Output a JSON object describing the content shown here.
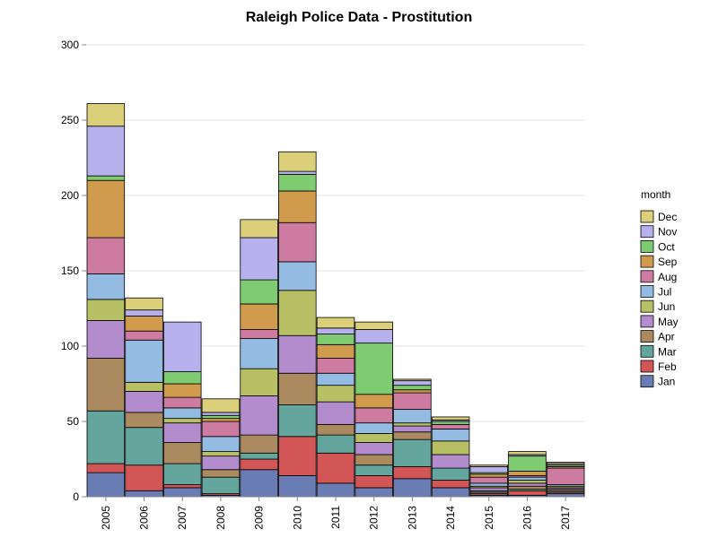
{
  "chart_data": {
    "type": "bar",
    "stacked": true,
    "title": "Raleigh Police Data - Prostitution",
    "xlabel": "",
    "ylabel": "",
    "ylim": [
      0,
      300
    ],
    "yticks": [
      0,
      50,
      100,
      150,
      200,
      250,
      300
    ],
    "categories": [
      "2005",
      "2006",
      "2007",
      "2008",
      "2009",
      "2010",
      "2011",
      "2012",
      "2013",
      "2014",
      "2015",
      "2016",
      "2017"
    ],
    "legend_title": "month",
    "legend_position": "right",
    "series": [
      {
        "name": "Jan",
        "color": "#6a7cb4",
        "values": [
          16,
          4,
          6,
          1,
          18,
          14,
          9,
          6,
          12,
          6,
          1,
          1,
          2
        ]
      },
      {
        "name": "Feb",
        "color": "#d35656",
        "values": [
          6,
          17,
          2,
          1,
          7,
          26,
          20,
          8,
          8,
          5,
          1,
          3,
          1
        ]
      },
      {
        "name": "Mar",
        "color": "#64a59d",
        "values": [
          35,
          25,
          14,
          11,
          4,
          21,
          12,
          7,
          18,
          8,
          1,
          1,
          1
        ]
      },
      {
        "name": "Apr",
        "color": "#aa8a5e",
        "values": [
          35,
          10,
          14,
          5,
          12,
          21,
          7,
          7,
          5,
          0,
          1,
          2,
          1
        ]
      },
      {
        "name": "May",
        "color": "#b28ccd",
        "values": [
          25,
          14,
          13,
          9,
          26,
          25,
          15,
          8,
          4,
          9,
          2,
          2,
          1
        ]
      },
      {
        "name": "Jun",
        "color": "#b8c066",
        "values": [
          14,
          6,
          3,
          3,
          18,
          30,
          11,
          6,
          2,
          9,
          1,
          2,
          1
        ]
      },
      {
        "name": "Jul",
        "color": "#94bbe2",
        "values": [
          17,
          28,
          7,
          10,
          20,
          19,
          8,
          7,
          9,
          8,
          2,
          2,
          1
        ]
      },
      {
        "name": "Aug",
        "color": "#cd7ba0",
        "values": [
          24,
          6,
          7,
          10,
          6,
          26,
          10,
          10,
          11,
          3,
          4,
          1,
          11
        ]
      },
      {
        "name": "Sep",
        "color": "#d19b4e",
        "values": [
          38,
          10,
          9,
          2,
          17,
          21,
          9,
          9,
          2,
          0,
          2,
          3,
          1
        ]
      },
      {
        "name": "Oct",
        "color": "#7fcb71",
        "values": [
          3,
          0,
          8,
          2,
          16,
          11,
          7,
          34,
          3,
          2,
          1,
          10,
          1
        ]
      },
      {
        "name": "Nov",
        "color": "#b6b0ec",
        "values": [
          33,
          4,
          33,
          2,
          28,
          2,
          4,
          9,
          3,
          1,
          4,
          1,
          1
        ]
      },
      {
        "name": "Dec",
        "color": "#dccf7a",
        "values": [
          15,
          8,
          0,
          9,
          12,
          13,
          7,
          5,
          1,
          2,
          1,
          2,
          1
        ]
      }
    ]
  }
}
